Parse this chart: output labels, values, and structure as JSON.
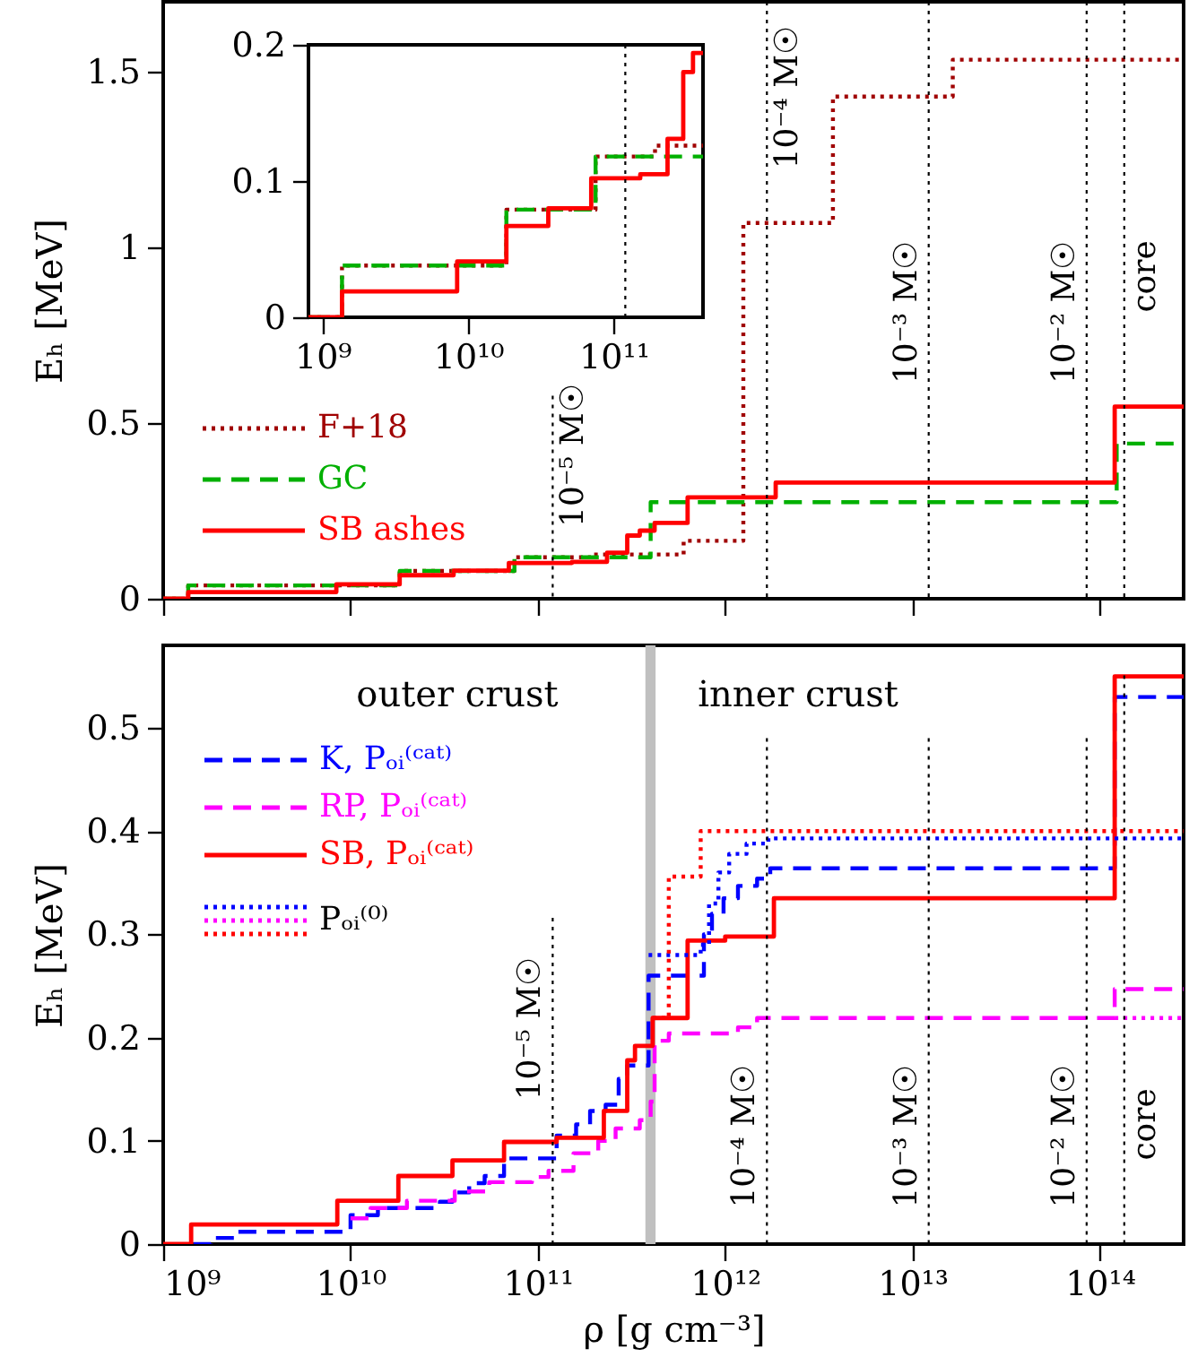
{
  "chart_data": [
    {
      "type": "step",
      "ylabel": "Eₕ [MeV]",
      "log": "x",
      "xlim": [
        1000000000.0,
        280000000000000.0
      ],
      "ylim": [
        0,
        1.7
      ],
      "xticks": [
        1000000000.0,
        10000000000.0,
        100000000000.0,
        1000000000000.0,
        10000000000000.0,
        100000000000000.0
      ],
      "yticks": [
        0,
        0.5,
        1,
        1.5
      ],
      "tick_labels": "y",
      "legend": "left",
      "series": [
        {
          "name": "F+18",
          "color": "#a00000",
          "line_style": "dotted",
          "x": [
            1000000000.0,
            1360000000.0,
            18300000000.0,
            75000000000.0,
            192000000000.0,
            600000000000.0,
            1250000000000.0,
            3760000000000.0,
            16400000000000.0,
            280000000000000.0
          ],
          "values": [
            0,
            0.038,
            0.079,
            0.118,
            0.126,
            0.165,
            1.07,
            1.43,
            1.535,
            1.535
          ]
        },
        {
          "name": "GC",
          "color": "#00b000",
          "line_style": "dashed",
          "x": [
            1000000000.0,
            1360000000.0,
            18300000000.0,
            75000000000.0,
            400000000000.0,
            123000000000000.0,
            280000000000000.0
          ],
          "values": [
            0,
            0.038,
            0.079,
            0.118,
            0.275,
            0.442,
            0.442
          ]
        },
        {
          "name": "SB ashes",
          "color": "#ff0000",
          "line_style": "solid",
          "x": [
            1000000000.0,
            1360000000.0,
            8400000000.0,
            18300000000.0,
            35500000000.0,
            70000000000.0,
            152000000000.0,
            234000000000.0,
            300000000000.0,
            350000000000.0,
            420000000000.0,
            630000000000.0,
            1860000000000.0,
            120000000000000.0,
            280000000000000.0
          ],
          "values": [
            0,
            0.019,
            0.041,
            0.067,
            0.08,
            0.102,
            0.105,
            0.131,
            0.18,
            0.194,
            0.216,
            0.289,
            0.331,
            0.547,
            0.547
          ]
        }
      ],
      "ref_lines": [
        {
          "axis": "x",
          "value": 120000000000.0,
          "label": "10⁻⁵ M☉",
          "line_style": "dotted"
        },
        {
          "axis": "x",
          "value": 1670000000000.0,
          "label": "10⁻⁴ M☉",
          "line_style": "dotted"
        },
        {
          "axis": "x",
          "value": 12200000000000.0,
          "label": "10⁻³ M☉",
          "line_style": "dotted"
        },
        {
          "axis": "x",
          "value": 85000000000000.0,
          "label": "10⁻² M☉",
          "line_style": "dotted"
        },
        {
          "axis": "x",
          "value": 135000000000000.0,
          "label": "core",
          "line_style": "dotted"
        }
      ]
    },
    {
      "type": "step",
      "log": "x",
      "xlim": [
        800000000.0,
        410000000000.0
      ],
      "ylim": [
        0,
        0.2
      ],
      "xticks": [
        {
          "value": 1000000000.0,
          "label": "10⁹"
        },
        {
          "value": 10000000000.0,
          "label": "10¹⁰"
        },
        {
          "value": 100000000000.0,
          "label": "10¹¹"
        }
      ],
      "yticks": [
        0,
        0.1,
        0.2
      ],
      "series": [
        {
          "color": "#a00000",
          "line_style": "dotted",
          "x": [
            800000000.0,
            1360000000.0,
            18300000000.0,
            75000000000.0,
            192000000000.0,
            410000000000.0
          ],
          "values": [
            0,
            0.038,
            0.079,
            0.118,
            0.126,
            0.126
          ]
        },
        {
          "color": "#00b000",
          "line_style": "dashed",
          "x": [
            800000000.0,
            1360000000.0,
            18300000000.0,
            75000000000.0,
            410000000000.0
          ],
          "values": [
            0,
            0.038,
            0.079,
            0.118,
            0.118
          ]
        },
        {
          "color": "#ff0000",
          "line_style": "solid",
          "x": [
            800000000.0,
            1360000000.0,
            8400000000.0,
            18300000000.0,
            35500000000.0,
            70000000000.0,
            152000000000.0,
            234000000000.0,
            300000000000.0,
            350000000000.0,
            410000000000.0
          ],
          "values": [
            0,
            0.019,
            0.041,
            0.067,
            0.08,
            0.102,
            0.105,
            0.131,
            0.18,
            0.194,
            0.194
          ]
        }
      ],
      "ref_lines": [
        {
          "axis": "x",
          "value": 120000000000.0,
          "line_style": "dotted"
        }
      ]
    },
    {
      "type": "step",
      "xlabel": "ρ [g cm⁻³]",
      "ylabel": "Eₕ [MeV]",
      "log": "x",
      "xlim": [
        1000000000.0,
        280000000000000.0
      ],
      "ylim": [
        0,
        0.58
      ],
      "xticks": [
        {
          "value": 1000000000.0,
          "label": "10⁹"
        },
        {
          "value": 10000000000.0,
          "label": "10¹⁰"
        },
        {
          "value": 100000000000.0,
          "label": "10¹¹"
        },
        {
          "value": 1000000000000.0,
          "label": "10¹²"
        },
        {
          "value": 10000000000000.0,
          "label": "10¹³"
        },
        {
          "value": 100000000000000.0,
          "label": "10¹⁴"
        }
      ],
      "yticks": [
        0,
        0.1,
        0.2,
        0.3,
        0.4,
        0.5
      ],
      "legend": "top left",
      "series": [
        {
          "name": "K, Pₒᵢ⁽ᶜᵃᵗ⁾",
          "color": "#0000ff",
          "line_style": "dashed",
          "x": [
            1450000000.0,
            1800000000.0,
            2500000000.0,
            10000000000.0,
            14000000000.0,
            30000000000.0,
            35000000000.0,
            43000000000.0,
            52000000000.0,
            66000000000.0,
            126000000000.0,
            160000000000.0,
            190000000000.0,
            230000000000.0,
            270000000000.0,
            300000000000.0,
            390000000000.0,
            770000000000.0,
            850000000000.0,
            980000000000.0,
            1170000000000.0,
            1480000000000.0,
            1740000000000.0,
            120000000000000.0,
            280000000000000.0
          ],
          "values": [
            0,
            0.006,
            0.012,
            0.028,
            0.035,
            0.041,
            0.05,
            0.059,
            0.066,
            0.083,
            0.105,
            0.116,
            0.129,
            0.135,
            0.16,
            0.173,
            0.26,
            0.3,
            0.32,
            0.335,
            0.347,
            0.354,
            0.364,
            0.53,
            0.53
          ]
        },
        {
          "name": "RP, Pₒᵢ⁽ᶜᵃᵗ⁾",
          "color": "#ff00ff",
          "line_style": "dashed",
          "x": [
            10000000000.0,
            12800000000.0,
            20000000000.0,
            36000000000.0,
            55000000000.0,
            93000000000.0,
            114000000000.0,
            155000000000.0,
            210000000000.0,
            260000000000.0,
            350000000000.0,
            400000000000.0,
            420000000000.0,
            500000000000.0,
            1170000000000.0,
            1480000000000.0,
            120000000000000.0,
            280000000000000.0
          ],
          "values": [
            0.025,
            0.035,
            0.042,
            0.051,
            0.06,
            0.065,
            0.071,
            0.088,
            0.1,
            0.112,
            0.12,
            0.138,
            0.197,
            0.204,
            0.21,
            0.219,
            0.247,
            0.247
          ]
        },
        {
          "name": "SB, Pₒᵢ⁽ᶜᵃᵗ⁾",
          "color": "#ff0000",
          "line_style": "solid",
          "x": [
            1000000000.0,
            1410000000.0,
            8500000000.0,
            18000000000.0,
            35000000000.0,
            66000000000.0,
            126000000000.0,
            225000000000.0,
            300000000000.0,
            330000000000.0,
            410000000000.0,
            630000000000.0,
            1000000000000.0,
            1820000000000.0,
            120000000000000.0,
            280000000000000.0
          ],
          "values": [
            0,
            0.019,
            0.042,
            0.066,
            0.081,
            0.099,
            0.103,
            0.129,
            0.178,
            0.192,
            0.219,
            0.294,
            0.298,
            0.335,
            0.55,
            0.55
          ]
        },
        {
          "name": "Pₒᵢ⁽⁰⁾",
          "color": "#0000ff",
          "line_style": "dotted",
          "x": [
            390000000000.0,
            740000000000.0,
            820000000000.0,
            920000000000.0,
            1050000000000.0,
            1300000000000.0,
            1700000000000.0,
            280000000000000.0
          ],
          "values": [
            0.28,
            0.29,
            0.33,
            0.36,
            0.378,
            0.388,
            0.393,
            0.393
          ]
        },
        {
          "color": "#ff00ff",
          "line_style": "dotted",
          "x": [
            120000000000000.0,
            280000000000000.0
          ],
          "values": [
            0.219,
            0.219
          ]
        },
        {
          "color": "#ff0000",
          "line_style": "dotted",
          "x": [
            410000000000.0,
            500000000000.0,
            740000000000.0,
            280000000000000.0
          ],
          "values": [
            0.219,
            0.356,
            0.4,
            0.4
          ]
        }
      ],
      "ref_lines": [
        {
          "axis": "x",
          "value": 120000000000.0,
          "label": "10⁻⁵ M☉",
          "line_style": "dotted"
        },
        {
          "axis": "x",
          "value": 1670000000000.0,
          "label": "10⁻⁴ M☉",
          "line_style": "dotted"
        },
        {
          "axis": "x",
          "value": 12200000000000.0,
          "label": "10⁻³ M☉",
          "line_style": "dotted"
        },
        {
          "axis": "x",
          "value": 85000000000000.0,
          "label": "10⁻² M☉",
          "line_style": "dotted"
        },
        {
          "axis": "x",
          "value": 135000000000000.0,
          "label": "core",
          "line_style": "dotted"
        }
      ],
      "bands": [
        {
          "axis": "x",
          "from": 375000000000.0,
          "to": 425000000000.0,
          "color": "#c0c0c0"
        }
      ],
      "annotations": [
        "outer crust",
        "inner crust"
      ]
    }
  ]
}
